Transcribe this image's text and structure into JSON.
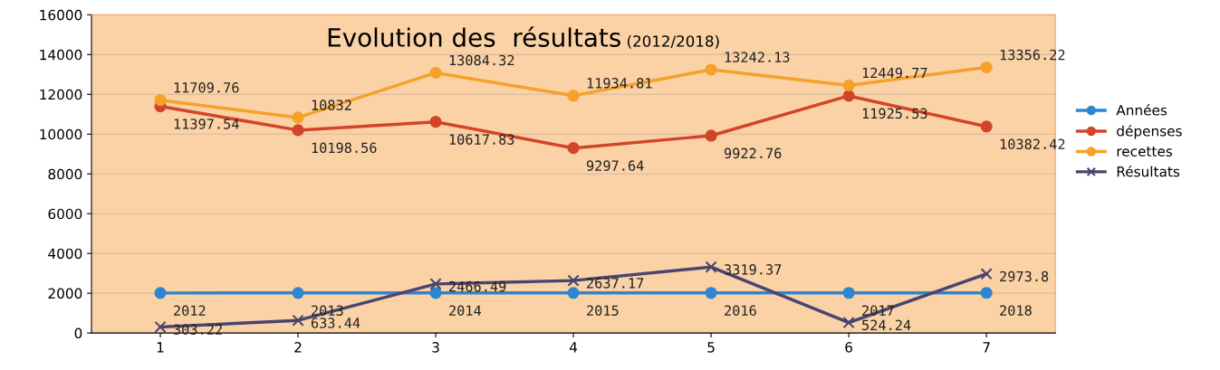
{
  "chart_data": {
    "type": "line",
    "title": "Evolution des  résultats",
    "subtitle": "(2012/2018)",
    "categories": [
      "1",
      "2",
      "3",
      "4",
      "5",
      "6",
      "7"
    ],
    "series": [
      {
        "name": "Années",
        "color": "#2e86d0",
        "marker": "circle",
        "values": [
          2012,
          2013,
          2014,
          2015,
          2016,
          2017,
          2018
        ]
      },
      {
        "name": "dépenses",
        "color": "#d2452a",
        "marker": "circle",
        "values": [
          11397.54,
          10198.56,
          10617.83,
          9297.64,
          9922.76,
          11925.53,
          10382.42
        ]
      },
      {
        "name": "recettes",
        "color": "#f5a12a",
        "marker": "circle",
        "values": [
          11709.76,
          10832,
          13084.32,
          11934.81,
          13242.13,
          12449.77,
          13356.22
        ]
      },
      {
        "name": "Résultats",
        "color": "#4a4470",
        "marker": "cross",
        "values": [
          303.22,
          633.44,
          2466.49,
          2637.17,
          3319.37,
          524.24,
          2973.8
        ]
      }
    ],
    "ylim": [
      0,
      16000
    ],
    "yticks": [
      0,
      2000,
      4000,
      6000,
      8000,
      10000,
      12000,
      14000,
      16000
    ],
    "grid": "y",
    "legend": "right",
    "data_labels": true
  }
}
